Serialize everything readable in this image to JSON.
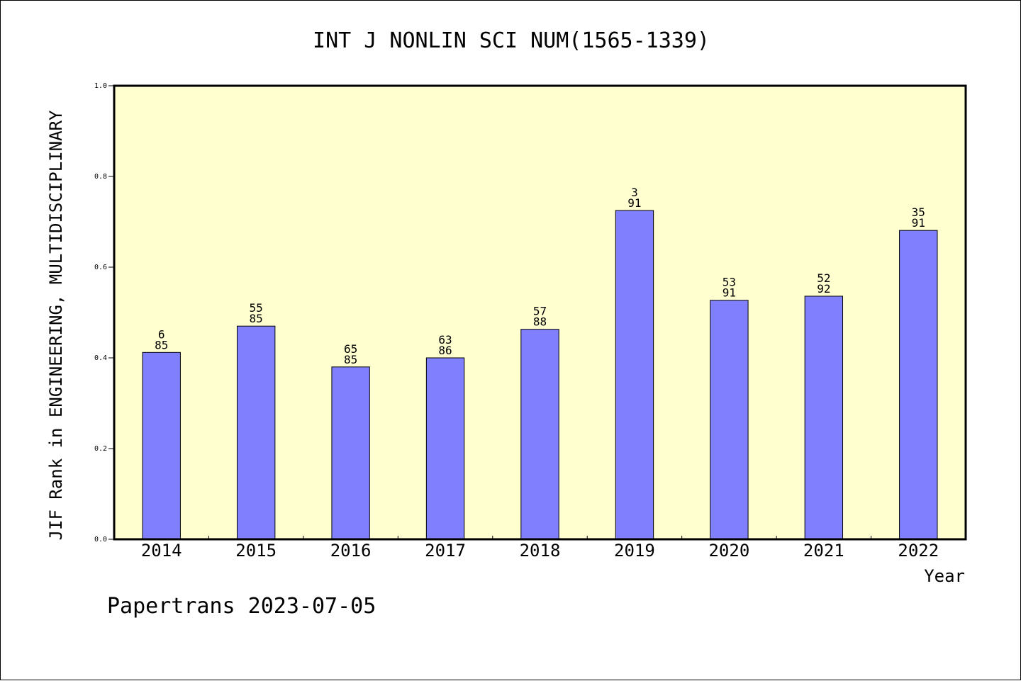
{
  "chart_data": {
    "type": "bar",
    "title": "INT J NONLIN SCI NUM(1565-1339)",
    "xlabel": "Year",
    "ylabel": "JIF Rank in ENGINEERING, MULTIDISCIPLINARY",
    "ylim": [
      0,
      1.0
    ],
    "yticks": [
      "0.0",
      "0.2",
      "0.4",
      "0.6",
      "0.8",
      "1.0"
    ],
    "categories": [
      "2014",
      "2015",
      "2016",
      "2017",
      "2018",
      "2019",
      "2020",
      "2021",
      "2022"
    ],
    "values": [
      0.412,
      0.47,
      0.38,
      0.4,
      0.463,
      0.725,
      0.527,
      0.536,
      0.681
    ],
    "bar_labels": [
      {
        "rank": "6",
        "total": "85"
      },
      {
        "rank": "55",
        "total": "85"
      },
      {
        "rank": "65",
        "total": "85"
      },
      {
        "rank": "63",
        "total": "86"
      },
      {
        "rank": "57",
        "total": "88"
      },
      {
        "rank": "3",
        "total": "91"
      },
      {
        "rank": "53",
        "total": "91"
      },
      {
        "rank": "52",
        "total": "92"
      },
      {
        "rank": "35",
        "total": "91"
      }
    ],
    "grid": false,
    "colors": {
      "bar": "#8080ff",
      "plot_background": "#ffffd0"
    }
  },
  "footer": {
    "watermark": "Papertrans 2023-07-05"
  }
}
